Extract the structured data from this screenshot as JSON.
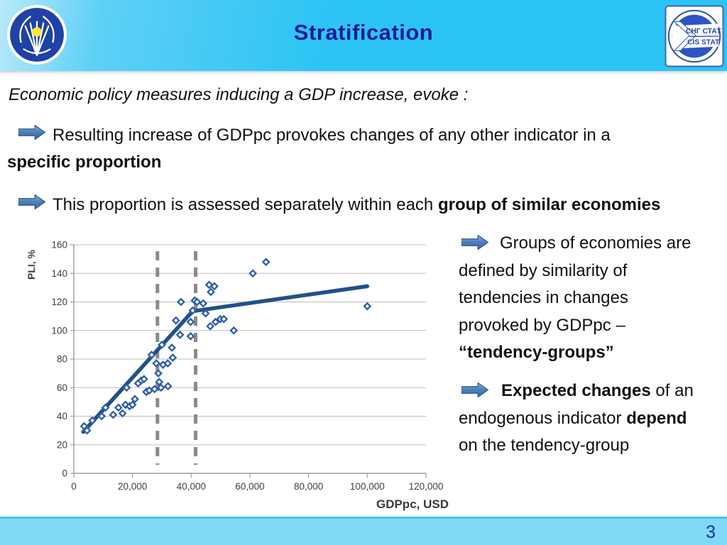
{
  "header": {
    "title": "Stratification"
  },
  "logo_right": {
    "line1": "СНГ СТАТ",
    "line2": "CIS STAT"
  },
  "intro": "Economic policy measures inducing a GDP increase, evoke :",
  "bullets": [
    {
      "lines": [
        [
          {
            "t": "Resulting increase of GDPpc provokes changes of any other indicator in a"
          }
        ],
        [
          {
            "t": "specific proportion",
            "b": true
          }
        ]
      ]
    },
    {
      "lines": [
        [
          {
            "t": "This proportion is assessed separately within each "
          },
          {
            "t": "group of similar economies",
            "b": true
          }
        ]
      ]
    }
  ],
  "right_blocks": [
    {
      "lines": [
        [
          {
            "t": "Groups of economies are"
          }
        ],
        [
          {
            "t": "defined by similarity of"
          }
        ],
        [
          {
            "t": "tendencies in changes"
          }
        ],
        [
          {
            "t": "provoked by GDPpc –"
          }
        ],
        [
          {
            "t": "“tendency-groups”",
            "b": true
          }
        ]
      ]
    },
    {
      "lines": [
        [
          {
            "t": "Expected changes",
            "b": true
          },
          {
            "t": " of an"
          }
        ],
        [
          {
            "t": "endogenous indicator "
          },
          {
            "t": "depend",
            "b": true
          }
        ],
        [
          {
            "t": "on the tendency-group"
          }
        ]
      ]
    }
  ],
  "footer": {
    "page_number": "3"
  },
  "colors": {
    "header_bg": "#2cc4f4",
    "header_title": "#1b1b97",
    "footer_bg": "#7fd9f7",
    "page_number": "#1d2f9b"
  },
  "chart_data": {
    "type": "scatter",
    "xlabel": "GDPpc, USD",
    "ylabel": "PLI, %",
    "xlim": [
      0,
      120000
    ],
    "ylim": [
      0,
      160
    ],
    "grid": "horizontal",
    "legend": "none",
    "xtick_values": [
      0,
      20000,
      40000,
      60000,
      80000,
      100000,
      120000
    ],
    "xtick_labels": [
      "0",
      "20,000",
      "40,000",
      "60,000",
      "80,000",
      "100,000",
      "120,000"
    ],
    "ytick_values": [
      0,
      20,
      40,
      60,
      80,
      100,
      120,
      140,
      160
    ],
    "ytick_labels": [
      "0",
      "20",
      "40",
      "60",
      "80",
      "100",
      "120",
      "140",
      "160"
    ],
    "points": [
      [
        3500,
        33
      ],
      [
        4500,
        30
      ],
      [
        6300,
        37
      ],
      [
        9500,
        40
      ],
      [
        10800,
        46
      ],
      [
        13400,
        41
      ],
      [
        15200,
        46
      ],
      [
        16600,
        42
      ],
      [
        17600,
        48
      ],
      [
        18000,
        60
      ],
      [
        19000,
        47
      ],
      [
        20000,
        48
      ],
      [
        20800,
        52
      ],
      [
        21900,
        63
      ],
      [
        23000,
        65
      ],
      [
        23900,
        66
      ],
      [
        24700,
        57
      ],
      [
        25700,
        58
      ],
      [
        26500,
        83
      ],
      [
        27500,
        59
      ],
      [
        28100,
        77
      ],
      [
        28800,
        70
      ],
      [
        29100,
        64
      ],
      [
        29700,
        60
      ],
      [
        30000,
        90
      ],
      [
        30400,
        76
      ],
      [
        32000,
        77
      ],
      [
        32100,
        61
      ],
      [
        33400,
        88
      ],
      [
        33700,
        81
      ],
      [
        34800,
        107
      ],
      [
        36200,
        97
      ],
      [
        36500,
        120
      ],
      [
        39800,
        96
      ],
      [
        39800,
        106
      ],
      [
        40500,
        114
      ],
      [
        41200,
        121
      ],
      [
        42000,
        120
      ],
      [
        44100,
        119
      ],
      [
        44900,
        112
      ],
      [
        46100,
        132
      ],
      [
        46500,
        103
      ],
      [
        46700,
        127
      ],
      [
        47900,
        131
      ],
      [
        48300,
        106
      ],
      [
        49900,
        108
      ],
      [
        51100,
        108
      ],
      [
        54500,
        100
      ],
      [
        61000,
        140
      ],
      [
        65500,
        148
      ],
      [
        100000,
        117
      ]
    ],
    "trendline": [
      [
        3200,
        29
      ],
      [
        40500,
        113.5
      ],
      [
        100000,
        131
      ]
    ],
    "dashed_vlines": [
      28500,
      41500
    ],
    "colors": {
      "marker": "#2d5fa6",
      "trend": "#21518b",
      "dashed": "#8a8a8a",
      "grid": "#bdbdbd",
      "axis": "#9b9b9b",
      "tick_text": "#3f3f3f"
    }
  }
}
